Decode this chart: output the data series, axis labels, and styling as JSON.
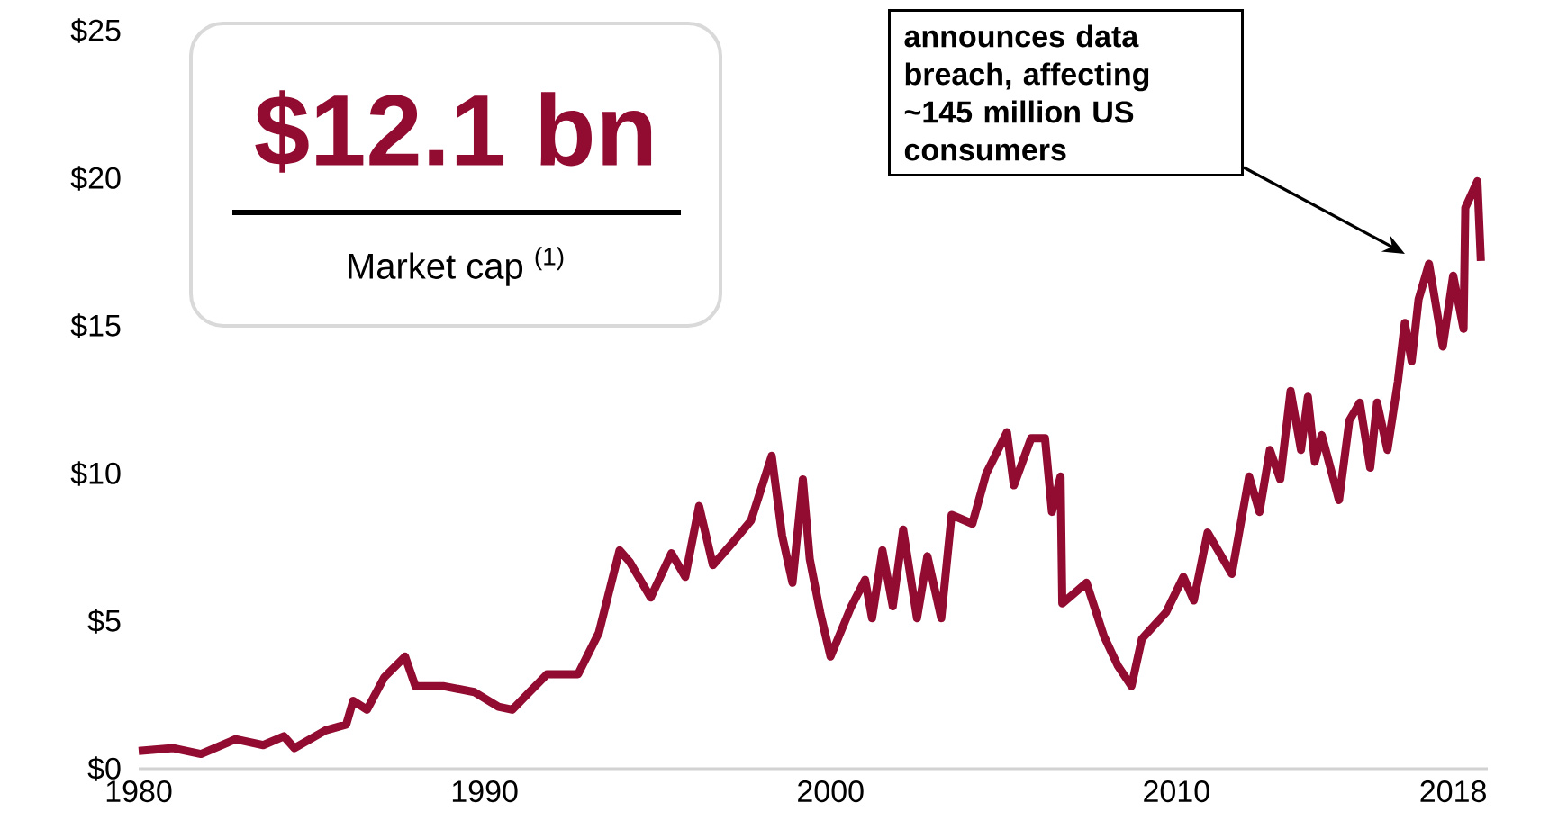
{
  "chart_data": {
    "type": "line",
    "color": "#920b30",
    "x": [
      1980.0,
      1981.0,
      1981.8,
      1982.8,
      1983.6,
      1984.2,
      1984.5,
      1985.4,
      1986.0,
      1986.2,
      1986.6,
      1987.1,
      1987.7,
      1988.0,
      1988.8,
      1989.7,
      1990.4,
      1990.8,
      1991.3,
      1991.8,
      1992.7,
      1993.3,
      1993.9,
      1994.2,
      1994.8,
      1995.4,
      1995.8,
      1996.2,
      1996.6,
      1997.2,
      1997.7,
      1998.3,
      1998.6,
      1998.9,
      1999.2,
      1999.4,
      1999.7,
      2000.0,
      2000.6,
      2001.0,
      2001.2,
      2001.5,
      2001.8,
      2002.1,
      2002.5,
      2002.8,
      2003.2,
      2003.5,
      2004.1,
      2004.5,
      2005.1,
      2005.3,
      2005.8,
      2006.2,
      2006.4,
      2006.65,
      2006.7,
      2007.4,
      2007.9,
      2008.3,
      2008.7,
      2009.0,
      2009.7,
      2010.2,
      2010.5,
      2010.9,
      2011.6,
      2012.1,
      2012.4,
      2012.7,
      2013.0,
      2013.3,
      2013.6,
      2013.8,
      2014.0,
      2014.2,
      2014.7,
      2015.0,
      2015.3,
      2015.6,
      2015.8,
      2016.1,
      2016.4,
      2016.6,
      2016.8,
      2017.0,
      2017.3,
      2017.7,
      2018.0,
      2018.3,
      2018.35,
      2018.7,
      2018.8
    ],
    "values": [
      0.6,
      0.7,
      0.5,
      1.0,
      0.8,
      1.1,
      0.7,
      1.3,
      1.5,
      2.3,
      2.0,
      3.1,
      3.8,
      2.8,
      2.8,
      2.6,
      2.1,
      2.0,
      2.6,
      3.2,
      3.2,
      4.6,
      7.4,
      7.0,
      5.8,
      7.3,
      6.5,
      8.9,
      6.9,
      7.7,
      8.4,
      10.6,
      7.9,
      6.3,
      9.8,
      7.1,
      5.3,
      3.8,
      5.5,
      6.4,
      5.1,
      7.4,
      5.5,
      8.1,
      5.1,
      7.2,
      5.1,
      8.6,
      8.3,
      10.0,
      11.4,
      9.6,
      11.2,
      11.2,
      8.7,
      9.9,
      5.6,
      6.3,
      4.5,
      3.5,
      2.8,
      4.4,
      5.3,
      6.5,
      5.7,
      8.0,
      6.6,
      9.9,
      8.7,
      10.8,
      9.8,
      12.8,
      10.8,
      12.6,
      10.4,
      11.3,
      9.1,
      11.8,
      12.4,
      10.2,
      12.4,
      10.8,
      13.1,
      15.1,
      13.8,
      15.9,
      17.1,
      14.3,
      16.7,
      14.9,
      19.0,
      19.9,
      17.2
    ],
    "xlim": [
      1980,
      2019
    ],
    "xticks": [
      1980,
      1990,
      2000,
      2010,
      2018
    ],
    "ylim": [
      0,
      25
    ],
    "yticks": [
      {
        "value": 0,
        "label": "$0"
      },
      {
        "value": 5,
        "label": "$5"
      },
      {
        "value": 10,
        "label": "$10"
      },
      {
        "value": 15,
        "label": "$15"
      },
      {
        "value": 20,
        "label": "$20"
      },
      {
        "value": 25,
        "label": "$25"
      }
    ],
    "annotations": [
      "$12.1 bn",
      "Market cap $^{(1)}$",
      "announces data breach, affecting ~145 million US consumers"
    ]
  }
}
